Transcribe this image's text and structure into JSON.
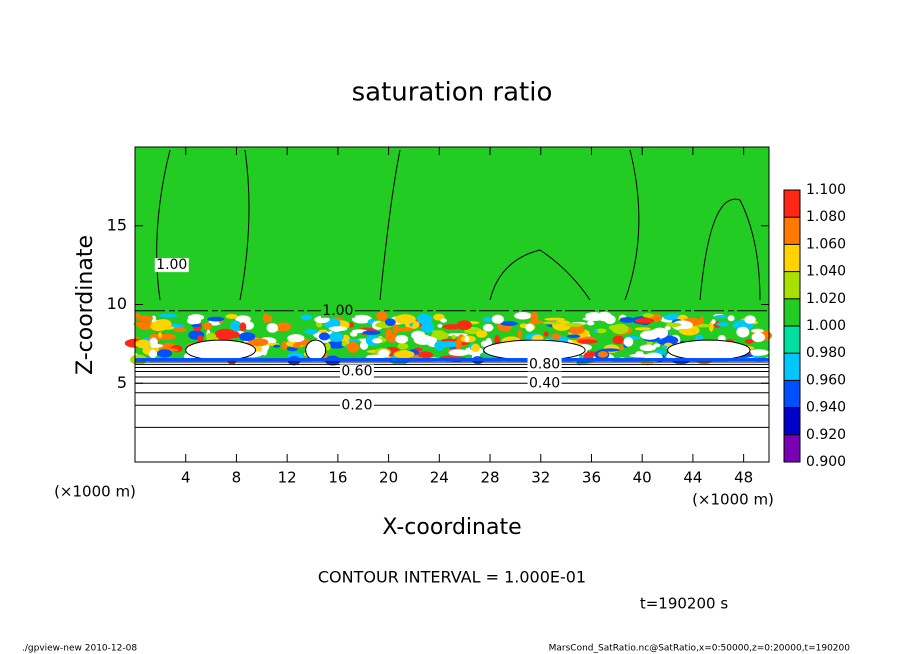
{
  "chart_data": {
    "type": "contour",
    "title": "saturation ratio",
    "xlabel": "X-coordinate",
    "ylabel": "Z-coordinate",
    "x_unit": "(×1000 m)",
    "y_unit": "(×1000 m)",
    "xlim": [
      0,
      50
    ],
    "xticks": [
      4,
      8,
      12,
      16,
      20,
      24,
      28,
      32,
      36,
      40,
      44,
      48
    ],
    "ylim": [
      0,
      20
    ],
    "yticks": [
      5,
      10,
      15
    ],
    "contours": [
      {
        "level": 0.1,
        "z": 2.2
      },
      {
        "level": 0.2,
        "z": 3.6
      },
      {
        "level": 0.3,
        "z": 4.4
      },
      {
        "level": 0.4,
        "z": 5.0
      },
      {
        "level": 0.5,
        "z": 5.4
      },
      {
        "level": 0.6,
        "z": 5.75
      },
      {
        "level": 0.7,
        "z": 6.0
      },
      {
        "level": 0.8,
        "z": 6.2
      },
      {
        "level": 0.9,
        "z": 6.35
      }
    ],
    "contour_labels": [
      {
        "value": 0.2,
        "label": "0.20",
        "x": 17.5,
        "z": 3.6
      },
      {
        "value": 0.4,
        "label": "0.40",
        "x": 32.3,
        "z": 5.0
      },
      {
        "value": 0.6,
        "label": "0.60",
        "x": 17.5,
        "z": 5.75
      },
      {
        "value": 0.8,
        "label": "0.80",
        "x": 32.3,
        "z": 6.2
      },
      {
        "value": 1.0,
        "label": "1.00",
        "x": 16.0,
        "z": 9.6
      },
      {
        "value": 1.0,
        "label": "1.00",
        "x": 2.9,
        "z": 12.5
      }
    ],
    "colorbar": {
      "levels": [
        {
          "value": 0.9,
          "label": "0.900"
        },
        {
          "value": 0.92,
          "label": "0.920"
        },
        {
          "value": 0.94,
          "label": "0.940"
        },
        {
          "value": 0.96,
          "label": "0.960"
        },
        {
          "value": 0.98,
          "label": "0.980"
        },
        {
          "value": 1.0,
          "label": "1.000"
        },
        {
          "value": 1.02,
          "label": "1.020"
        },
        {
          "value": 1.04,
          "label": "1.040"
        },
        {
          "value": 1.06,
          "label": "1.060"
        },
        {
          "value": 1.08,
          "label": "1.080"
        },
        {
          "value": 1.1,
          "label": "1.100"
        }
      ],
      "colors": [
        "#7a00b4",
        "#0000c8",
        "#0050ff",
        "#00c8ff",
        "#00e0a0",
        "#22cc22",
        "#a8e000",
        "#ffd200",
        "#ff7800",
        "#ff2814"
      ]
    },
    "contour_interval": "CONTOUR INTERVAL = 1.000E-01",
    "time_label": "t=190200 s",
    "footer_left": "./gpview-new   2010-12-08",
    "footer_right": "MarsCond_SatRatio.nc@SatRatio,x=0:50000,z=0:20000,t=190200"
  }
}
